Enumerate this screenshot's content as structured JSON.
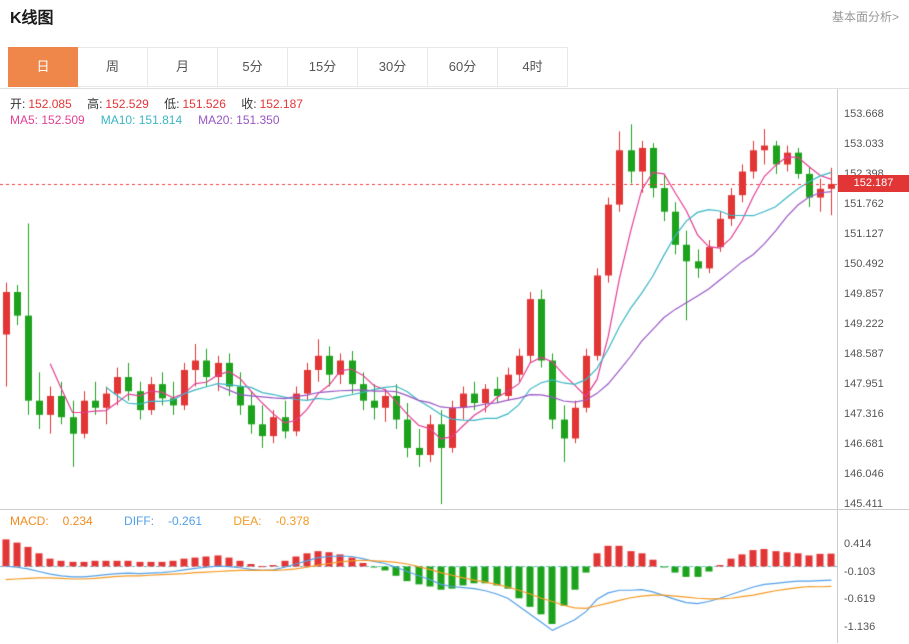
{
  "header": {
    "title": "K线图",
    "link_label": "基本面分析>"
  },
  "tabs": [
    {
      "key": "day",
      "label": "日",
      "active": true
    },
    {
      "key": "week",
      "label": "周",
      "active": false
    },
    {
      "key": "month",
      "label": "月",
      "active": false
    },
    {
      "key": "5min",
      "label": "5分",
      "active": false
    },
    {
      "key": "15min",
      "label": "15分",
      "active": false
    },
    {
      "key": "30min",
      "label": "30分",
      "active": false
    },
    {
      "key": "60min",
      "label": "60分",
      "active": false
    },
    {
      "key": "4hour",
      "label": "4时",
      "active": false
    }
  ],
  "main_info": {
    "open_label": "开:",
    "open_value": "152.085",
    "high_label": "高:",
    "high_value": "152.529",
    "low_label": "低:",
    "low_value": "151.526",
    "close_label": "收:",
    "close_value": "152.187"
  },
  "ma_info": [
    {
      "label": "MA5:",
      "value": "152.509"
    },
    {
      "label": "MA10:",
      "value": "151.814"
    },
    {
      "label": "MA20:",
      "value": "151.350"
    }
  ],
  "macd_info": {
    "macd_label": "MACD:",
    "macd_value": "0.234",
    "diff_label": "DIFF:",
    "diff_value": "-0.261",
    "dea_label": "DEA:",
    "dea_value": "-0.378"
  },
  "price_badge": "152.187",
  "colors": {
    "up": "#E23535",
    "down": "#1CA21C",
    "ma5": "#E33F93",
    "ma10": "#3BB6C4",
    "ma20": "#9A57C5",
    "diff": "#53A0E8",
    "dea": "#F59A23",
    "macd_text": "#F08C1E",
    "price_line": "#F23C3C",
    "zero_line": "#5BC8DC",
    "accent": "#F0874A",
    "badge_bg": "#E23535"
  },
  "chart_data": {
    "type": "candlestick",
    "title": "K线图",
    "y_axis_labels": [
      "153.668",
      "153.033",
      "152.398",
      "151.762",
      "151.127",
      "150.492",
      "149.857",
      "149.222",
      "148.587",
      "147.951",
      "147.316",
      "146.681",
      "146.046",
      "145.411"
    ],
    "macd_axis_labels": [
      "0.414",
      "-0.103",
      "-0.619",
      "-1.136"
    ],
    "price_line_value": 152.187,
    "ma_windows": [
      5,
      10,
      20
    ],
    "legend_position": "top-left-overlay",
    "grid": false,
    "candles": [
      [
        149.0,
        150.1,
        147.9,
        149.9
      ],
      [
        149.9,
        150.05,
        149.2,
        149.4
      ],
      [
        149.4,
        151.35,
        147.3,
        147.6
      ],
      [
        147.6,
        148.2,
        147.0,
        147.3
      ],
      [
        147.3,
        147.9,
        146.9,
        147.7
      ],
      [
        147.7,
        148.0,
        147.1,
        147.25
      ],
      [
        147.25,
        147.6,
        146.2,
        146.9
      ],
      [
        146.9,
        147.8,
        146.8,
        147.6
      ],
      [
        147.6,
        148.0,
        147.3,
        147.45
      ],
      [
        147.45,
        147.9,
        147.1,
        147.75
      ],
      [
        147.75,
        148.3,
        147.5,
        148.1
      ],
      [
        148.1,
        148.4,
        147.6,
        147.8
      ],
      [
        147.8,
        148.0,
        147.2,
        147.4
      ],
      [
        147.4,
        148.1,
        147.3,
        147.95
      ],
      [
        147.95,
        148.2,
        147.5,
        147.65
      ],
      [
        147.65,
        148.0,
        147.3,
        147.5
      ],
      [
        147.5,
        148.4,
        147.4,
        148.25
      ],
      [
        148.25,
        148.8,
        147.9,
        148.45
      ],
      [
        148.45,
        148.7,
        147.9,
        148.1
      ],
      [
        148.1,
        148.55,
        147.8,
        148.4
      ],
      [
        148.4,
        148.6,
        147.7,
        147.9
      ],
      [
        147.9,
        148.2,
        147.3,
        147.5
      ],
      [
        147.5,
        147.8,
        146.9,
        147.1
      ],
      [
        147.1,
        147.5,
        146.6,
        146.85
      ],
      [
        146.85,
        147.4,
        146.7,
        147.25
      ],
      [
        147.25,
        147.6,
        146.8,
        146.95
      ],
      [
        146.95,
        147.9,
        146.85,
        147.75
      ],
      [
        147.75,
        148.4,
        147.6,
        148.25
      ],
      [
        148.25,
        148.9,
        148.0,
        148.55
      ],
      [
        148.55,
        148.75,
        147.9,
        148.15
      ],
      [
        148.15,
        148.6,
        147.95,
        148.45
      ],
      [
        148.45,
        148.65,
        147.75,
        147.95
      ],
      [
        147.95,
        148.2,
        147.4,
        147.6
      ],
      [
        147.6,
        147.95,
        147.2,
        147.45
      ],
      [
        147.45,
        147.85,
        147.15,
        147.7
      ],
      [
        147.7,
        147.95,
        147.0,
        147.2
      ],
      [
        147.2,
        147.55,
        146.4,
        146.6
      ],
      [
        146.6,
        147.0,
        146.2,
        146.45
      ],
      [
        146.45,
        147.3,
        146.3,
        147.1
      ],
      [
        147.1,
        147.4,
        145.41,
        146.6
      ],
      [
        146.6,
        147.6,
        146.5,
        147.45
      ],
      [
        147.45,
        147.9,
        147.2,
        147.75
      ],
      [
        147.75,
        148.0,
        147.4,
        147.55
      ],
      [
        147.55,
        147.95,
        147.35,
        147.85
      ],
      [
        147.85,
        148.1,
        147.55,
        147.7
      ],
      [
        147.7,
        148.3,
        147.6,
        148.15
      ],
      [
        148.15,
        148.7,
        148.0,
        148.55
      ],
      [
        148.55,
        149.9,
        148.4,
        149.75
      ],
      [
        149.75,
        149.95,
        148.3,
        148.45
      ],
      [
        148.45,
        148.6,
        147.0,
        147.2
      ],
      [
        147.2,
        147.5,
        146.3,
        146.8
      ],
      [
        146.8,
        147.6,
        146.7,
        147.45
      ],
      [
        147.45,
        148.7,
        147.35,
        148.55
      ],
      [
        148.55,
        150.4,
        148.45,
        150.25
      ],
      [
        150.25,
        151.9,
        150.1,
        151.75
      ],
      [
        151.75,
        153.3,
        151.6,
        152.9
      ],
      [
        152.9,
        153.45,
        152.2,
        152.45
      ],
      [
        152.45,
        153.1,
        152.0,
        152.95
      ],
      [
        152.95,
        153.05,
        151.9,
        152.1
      ],
      [
        152.1,
        152.4,
        151.4,
        151.6
      ],
      [
        151.6,
        151.8,
        150.7,
        150.9
      ],
      [
        150.9,
        151.2,
        149.3,
        150.55
      ],
      [
        150.55,
        150.8,
        150.2,
        150.4
      ],
      [
        150.4,
        151.0,
        150.3,
        150.85
      ],
      [
        150.85,
        151.6,
        150.75,
        151.45
      ],
      [
        151.45,
        152.1,
        151.3,
        151.95
      ],
      [
        151.95,
        152.6,
        151.8,
        152.45
      ],
      [
        152.45,
        153.1,
        152.3,
        152.9
      ],
      [
        152.9,
        153.35,
        152.6,
        153.0
      ],
      [
        153.0,
        153.1,
        152.4,
        152.6
      ],
      [
        152.6,
        153.0,
        152.45,
        152.85
      ],
      [
        152.85,
        152.95,
        152.3,
        152.4
      ],
      [
        152.4,
        152.55,
        151.7,
        151.9
      ],
      [
        151.9,
        152.3,
        151.6,
        152.085
      ],
      [
        152.085,
        152.529,
        151.526,
        152.187
      ]
    ],
    "macd": {
      "diff": [
        0.0,
        -0.02,
        -0.05,
        -0.1,
        -0.15,
        -0.18,
        -0.2,
        -0.2,
        -0.18,
        -0.16,
        -0.14,
        -0.13,
        -0.14,
        -0.13,
        -0.12,
        -0.1,
        -0.07,
        -0.04,
        -0.02,
        0.0,
        -0.01,
        -0.03,
        -0.06,
        -0.08,
        -0.07,
        -0.02,
        0.04,
        0.1,
        0.16,
        0.18,
        0.19,
        0.18,
        0.14,
        0.09,
        0.05,
        -0.02,
        -0.1,
        -0.18,
        -0.25,
        -0.34,
        -0.38,
        -0.4,
        -0.42,
        -0.46,
        -0.52,
        -0.6,
        -0.75,
        -0.9,
        -1.05,
        -1.2,
        -1.1,
        -1.0,
        -0.85,
        -0.62,
        -0.5,
        -0.45,
        -0.45,
        -0.44,
        -0.48,
        -0.55,
        -0.62,
        -0.68,
        -0.7,
        -0.66,
        -0.6,
        -0.53,
        -0.46,
        -0.39,
        -0.34,
        -0.32,
        -0.3,
        -0.28,
        -0.28,
        -0.27,
        -0.261
      ],
      "dea": [
        -0.25,
        -0.24,
        -0.23,
        -0.22,
        -0.22,
        -0.23,
        -0.24,
        -0.24,
        -0.23,
        -0.21,
        -0.19,
        -0.18,
        -0.18,
        -0.17,
        -0.16,
        -0.15,
        -0.14,
        -0.12,
        -0.11,
        -0.1,
        -0.09,
        -0.08,
        -0.08,
        -0.08,
        -0.08,
        -0.07,
        -0.05,
        -0.02,
        0.02,
        0.05,
        0.08,
        0.1,
        0.11,
        0.1,
        0.09,
        0.07,
        0.04,
        -0.01,
        -0.06,
        -0.12,
        -0.17,
        -0.22,
        -0.26,
        -0.3,
        -0.34,
        -0.39,
        -0.45,
        -0.52,
        -0.6,
        -0.66,
        -0.73,
        -0.78,
        -0.79,
        -0.74,
        -0.69,
        -0.64,
        -0.59,
        -0.56,
        -0.54,
        -0.54,
        -0.56,
        -0.58,
        -0.6,
        -0.61,
        -0.61,
        -0.6,
        -0.57,
        -0.54,
        -0.5,
        -0.46,
        -0.43,
        -0.4,
        -0.38,
        -0.385,
        -0.378
      ]
    }
  }
}
